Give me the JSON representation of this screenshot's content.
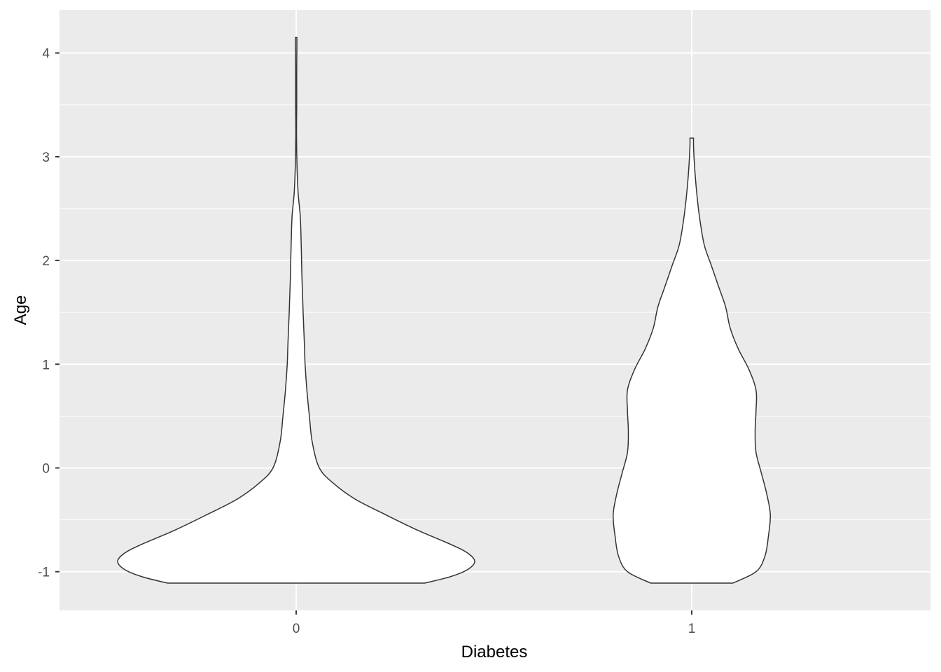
{
  "chart_data": {
    "type": "violin",
    "xlabel": "Diabetes",
    "ylabel": "Age",
    "categories": [
      "0",
      "1"
    ],
    "ylim": [
      -1.35,
      4.4
    ],
    "yticks": [
      -1,
      0,
      1,
      2,
      3,
      4
    ],
    "grid": true,
    "colors": {
      "panel": "#EBEBEB",
      "grid": "#FFFFFF",
      "fill": "#FFFFFF",
      "outline": "#333333",
      "tick": "#333333",
      "tickLabel": "#4D4D4D"
    },
    "series": [
      {
        "category": "0",
        "profile": [
          [
            -1.11,
            0.72
          ],
          [
            -1.05,
            0.86
          ],
          [
            -0.98,
            0.96
          ],
          [
            -0.9,
            1.0
          ],
          [
            -0.82,
            0.96
          ],
          [
            -0.74,
            0.87
          ],
          [
            -0.6,
            0.68
          ],
          [
            -0.45,
            0.5
          ],
          [
            -0.3,
            0.33
          ],
          [
            -0.15,
            0.21
          ],
          [
            0.0,
            0.13
          ],
          [
            0.25,
            0.09
          ],
          [
            0.5,
            0.074
          ],
          [
            0.75,
            0.06
          ],
          [
            1.0,
            0.05
          ],
          [
            1.2,
            0.046
          ],
          [
            1.5,
            0.039
          ],
          [
            1.8,
            0.033
          ],
          [
            2.1,
            0.029
          ],
          [
            2.3,
            0.026
          ],
          [
            2.45,
            0.022
          ],
          [
            2.65,
            0.011
          ],
          [
            2.9,
            0.005
          ],
          [
            3.2,
            0.002
          ],
          [
            3.5,
            0.003
          ],
          [
            3.8,
            0.003
          ],
          [
            4.1,
            0.004
          ],
          [
            4.15,
            0.004
          ]
        ]
      },
      {
        "category": "1",
        "profile": [
          [
            -1.11,
            0.23
          ],
          [
            -1.0,
            0.36
          ],
          [
            -0.85,
            0.41
          ],
          [
            -0.65,
            0.43
          ],
          [
            -0.45,
            0.44
          ],
          [
            -0.25,
            0.42
          ],
          [
            -0.05,
            0.39
          ],
          [
            0.15,
            0.36
          ],
          [
            0.35,
            0.355
          ],
          [
            0.55,
            0.36
          ],
          [
            0.75,
            0.36
          ],
          [
            0.95,
            0.32
          ],
          [
            1.15,
            0.26
          ],
          [
            1.35,
            0.215
          ],
          [
            1.55,
            0.19
          ],
          [
            1.75,
            0.15
          ],
          [
            1.95,
            0.11
          ],
          [
            2.15,
            0.07
          ],
          [
            2.4,
            0.045
          ],
          [
            2.65,
            0.028
          ],
          [
            2.9,
            0.016
          ],
          [
            3.1,
            0.01
          ],
          [
            3.18,
            0.01
          ]
        ]
      }
    ]
  }
}
